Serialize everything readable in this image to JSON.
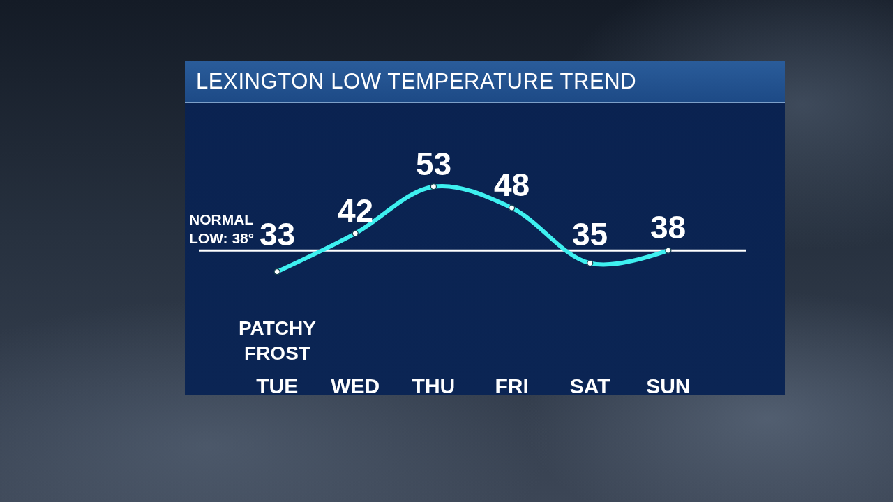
{
  "chart_data": {
    "type": "line",
    "title": "LEXINGTON LOW TEMPERATURE TREND",
    "categories": [
      "TUE",
      "WED",
      "THU",
      "FRI",
      "SAT",
      "SUN"
    ],
    "values": [
      33,
      42,
      53,
      48,
      35,
      38
    ],
    "color": "#3ef0f0",
    "marker": "circle",
    "data_labels": true,
    "tick_labels": "x",
    "ref_lines": [
      {
        "axis": "y",
        "value": 38,
        "label": "NORMAL LOW: 38°",
        "color": "#ffffff"
      }
    ],
    "annotations": [
      "PATCHY FROST"
    ]
  }
}
